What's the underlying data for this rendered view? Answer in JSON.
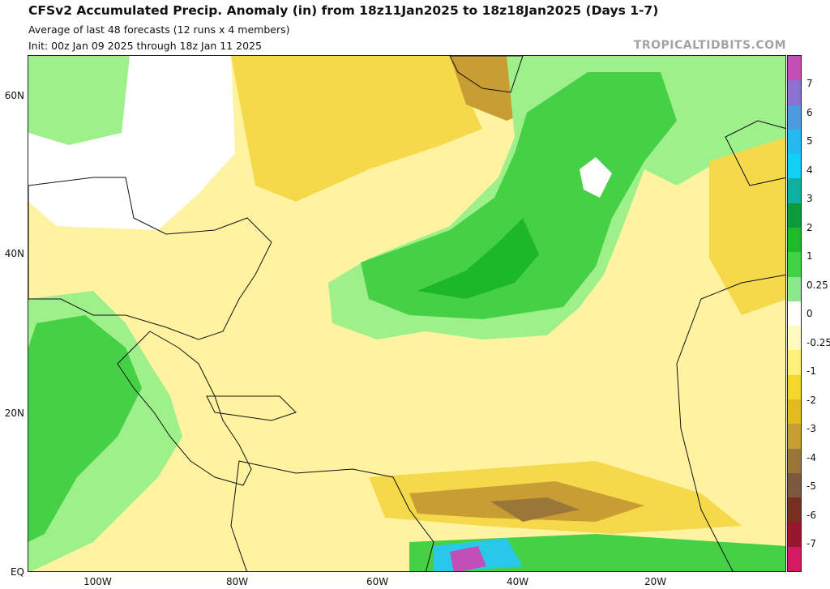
{
  "header": {
    "title": "CFSv2 Accumulated Precip. Anomaly (in) from 18z11Jan2025 to 18z18Jan2025 (Days 1-7)",
    "subtitle1": "Average of last 48 forecasts (12 runs x 4 members)",
    "subtitle2": "Init: 00z Jan 09 2025 through 18z Jan 11 2025",
    "brand": "TROPICALTIDBITS.COM"
  },
  "axes": {
    "lat_labels": [
      "60N",
      "40N",
      "20N",
      "EQ"
    ],
    "lon_labels": [
      "100W",
      "80W",
      "60W",
      "40W",
      "20W"
    ]
  },
  "colorbar": {
    "labels": [
      "7",
      "6",
      "5",
      "4",
      "3",
      "2",
      "1",
      "0.25",
      "0",
      "-0.25",
      "-1",
      "-2",
      "-3",
      "-4",
      "-5",
      "-6",
      "-7"
    ],
    "colors": [
      "#c24fb7",
      "#8a72d0",
      "#4a9be0",
      "#26b8f0",
      "#10d0f5",
      "#10b0a0",
      "#0c9a3a",
      "#1dbb2a",
      "#43d243",
      "#8be88b",
      "#ffffff",
      "#fffbc0",
      "#fff07a",
      "#f6d52c",
      "#e5ba20",
      "#c79d34",
      "#9a7638",
      "#7d5840",
      "#77301f",
      "#971730",
      "#d31b64"
    ]
  },
  "colors": {
    "land_line": "#111111",
    "dry_light": "#fff3a1",
    "dry_medium": "#f5d94a",
    "dry_strong": "#c79d34",
    "wet_light": "#9ef08a",
    "wet_medium": "#45d045",
    "wet_strong": "#1db82a",
    "extreme_wet": "#29c8e8"
  }
}
